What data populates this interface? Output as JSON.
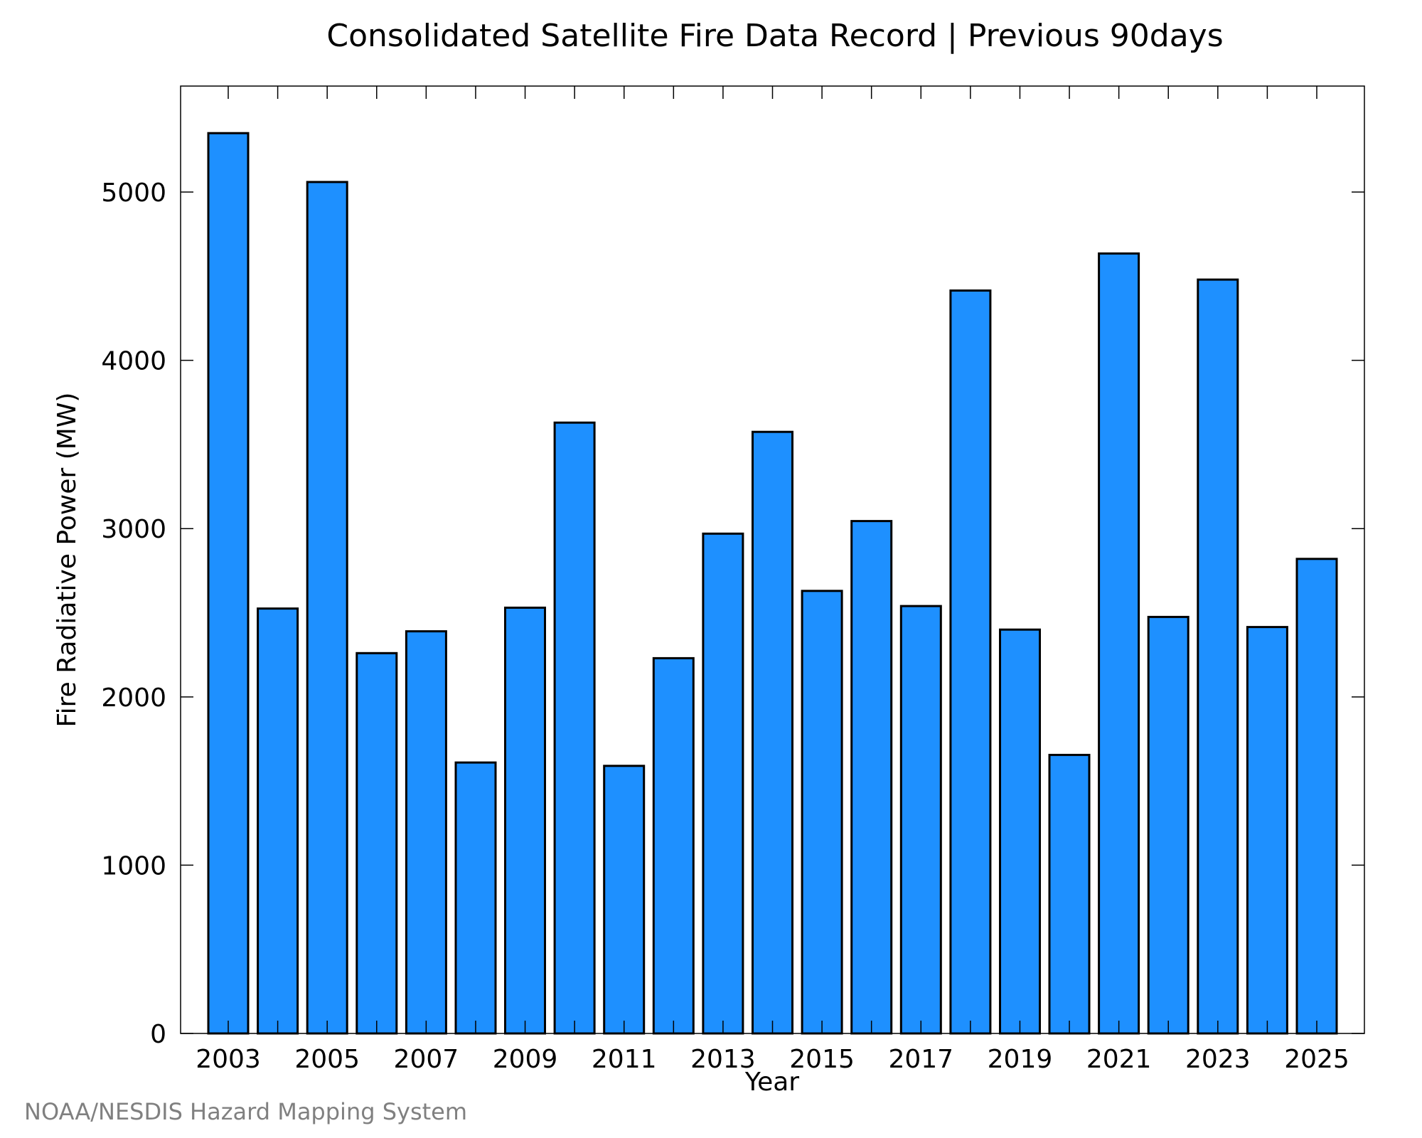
{
  "chart_data": {
    "type": "bar",
    "title": "Consolidated Satellite Fire Data Record | Previous 90days",
    "xlabel": "Year",
    "ylabel": "Fire Radiative Power (MW)",
    "categories": [
      "2003",
      "2004",
      "2005",
      "2006",
      "2007",
      "2008",
      "2009",
      "2010",
      "2011",
      "2012",
      "2013",
      "2014",
      "2015",
      "2016",
      "2017",
      "2018",
      "2019",
      "2020",
      "2021",
      "2022",
      "2023",
      "2024",
      "2025"
    ],
    "values": [
      5350,
      2525,
      5060,
      2260,
      2390,
      1610,
      2530,
      3630,
      1590,
      2230,
      2970,
      3575,
      2630,
      3045,
      2540,
      4415,
      2400,
      1655,
      4635,
      2475,
      4480,
      2415,
      2820
    ],
    "ylim": [
      0,
      5630
    ],
    "yticks": [
      0,
      1000,
      2000,
      3000,
      4000,
      5000
    ],
    "xtick_labels": [
      "2003",
      "2005",
      "2007",
      "2009",
      "2011",
      "2013",
      "2015",
      "2017",
      "2019",
      "2021",
      "2023",
      "2025"
    ],
    "bar_color": "#1e90ff",
    "grid": false,
    "legend": "none"
  },
  "footer": {
    "credit": "NOAA/NESDIS Hazard Mapping System"
  }
}
